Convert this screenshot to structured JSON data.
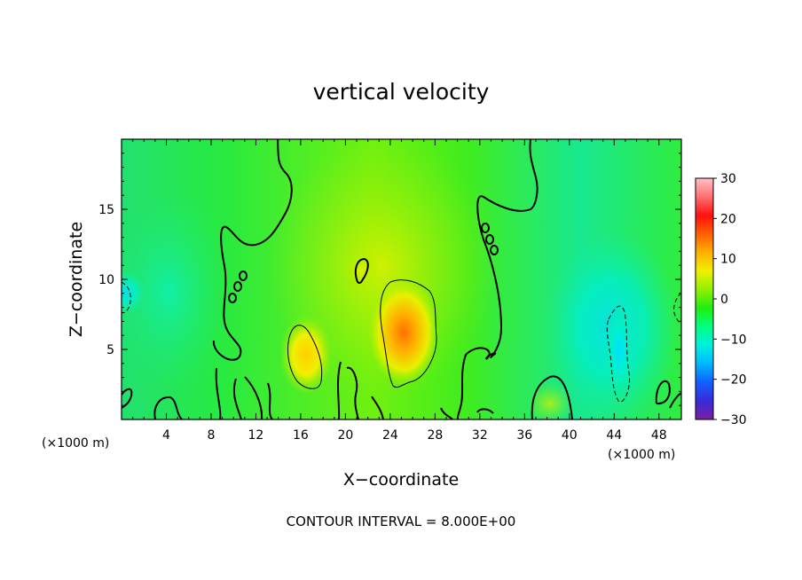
{
  "chart_data": {
    "type": "heatmap",
    "title": "vertical velocity",
    "xlabel": "X−coordinate",
    "ylabel": "Z−coordinate",
    "x_unit_label": "(×1000 m)",
    "x_unit_label_2": "(×1000 m)",
    "xlim": [
      0,
      50
    ],
    "ylim": [
      0,
      20
    ],
    "x_ticks": [
      4,
      8,
      12,
      16,
      20,
      24,
      28,
      32,
      36,
      40,
      44,
      48
    ],
    "y_ticks": [
      5,
      10,
      15
    ],
    "colorbar": {
      "range": [
        -30,
        30
      ],
      "ticks": [
        30,
        20,
        10,
        0,
        -10,
        -20,
        -30
      ],
      "tick_labels": [
        "30",
        "20",
        "10",
        "0",
        "−10",
        "−20",
        "−30"
      ],
      "colors": [
        "#7a1fa0",
        "#3a2ad8",
        "#1060ff",
        "#00b8ff",
        "#00f0e0",
        "#00ff80",
        "#20ee10",
        "#90f000",
        "#f0f000",
        "#ffb000",
        "#ff6000",
        "#ff1010",
        "#ff7070",
        "#ffc0c8"
      ]
    },
    "background_value": 2,
    "features": [
      {
        "kind": "updraft",
        "x": 16.5,
        "z": 4.8,
        "peak": 10
      },
      {
        "kind": "updraft",
        "x": 25,
        "z": 6.5,
        "peak": 16
      },
      {
        "kind": "updraft",
        "x": 21.5,
        "z": 10.5,
        "peak": 8
      },
      {
        "kind": "downdraft",
        "x": 44.5,
        "z": 4.5,
        "peak": -9
      },
      {
        "kind": "downdraft",
        "x": 2,
        "z": 8.5,
        "peak": -5
      }
    ],
    "contour_interval_text": "CONTOUR INTERVAL = 8.000E+00"
  }
}
